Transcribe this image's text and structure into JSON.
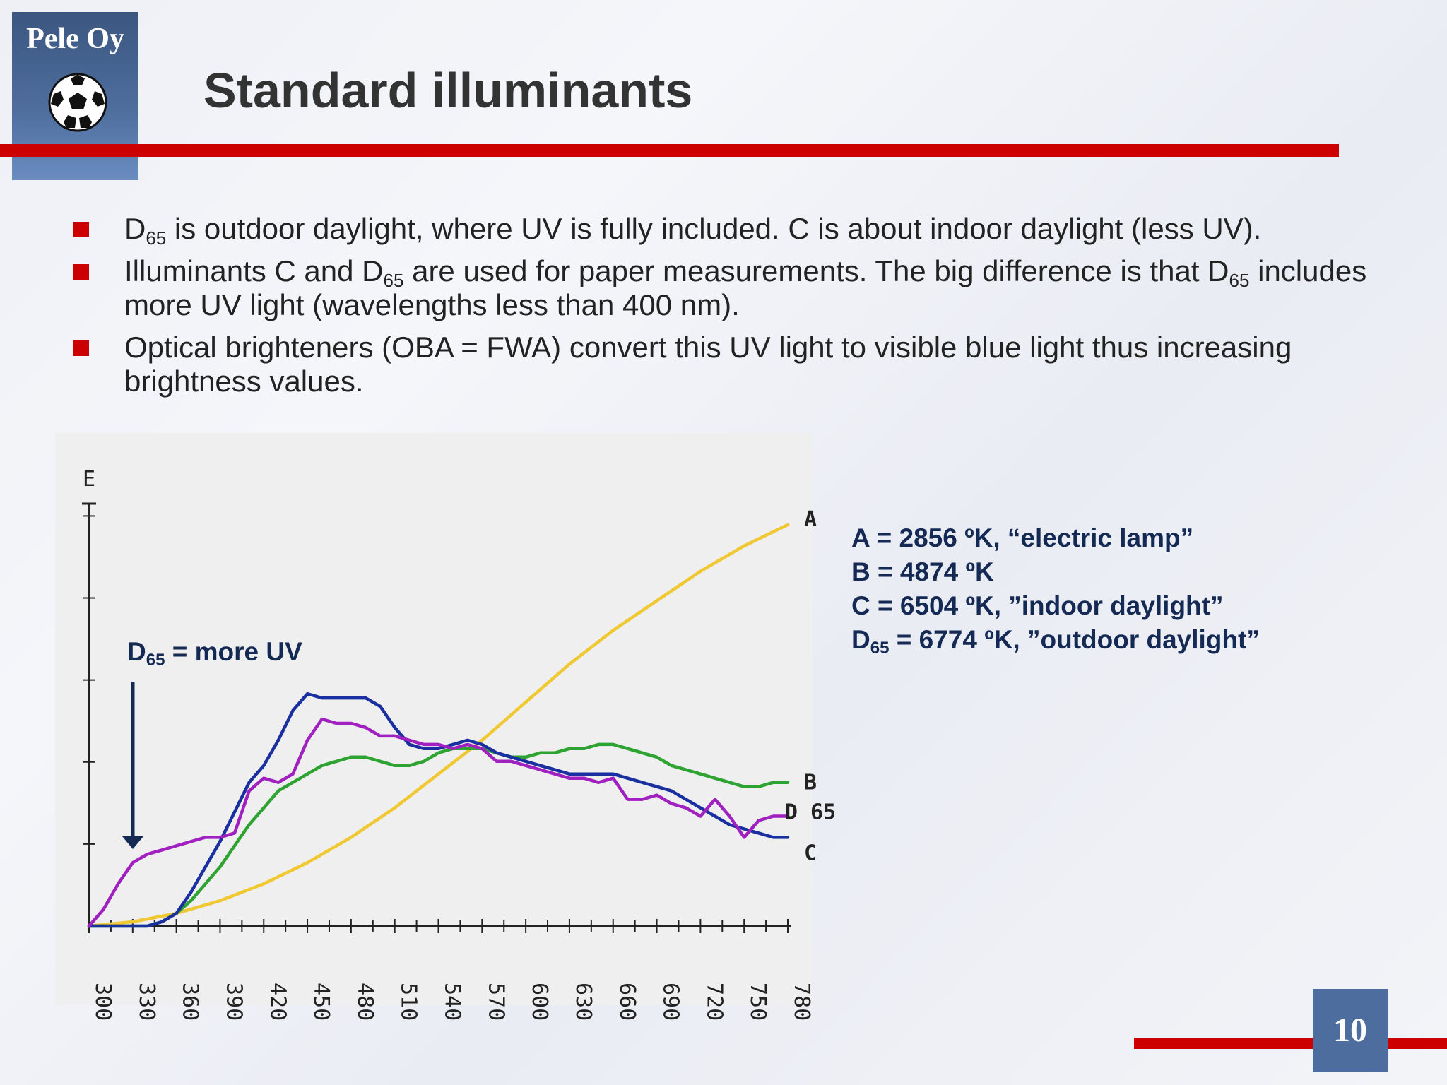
{
  "logo": {
    "text": "Pele Oy",
    "icon": "soccer-ball-icon"
  },
  "title": "Standard illuminants",
  "colors": {
    "accent_red": "#cc0000",
    "logo_blue": "#4f6f9f",
    "text_navy": "#142a55"
  },
  "bullets": [
    {
      "p1": "D",
      "sub1": "65",
      "p2": " is outdoor daylight, where UV is fully included. C is about indoor daylight (less UV)."
    },
    {
      "p1": "Illuminants C and D",
      "sub1": "65",
      "p2": " are used for paper measurements. The big difference is that D",
      "sub2": "65",
      "p3": " includes more UV light (wavelengths less than 400 nm)."
    },
    {
      "p1": "Optical brighteners (OBA = FWA) convert this UV light to visible blue light thus increasing brightness values."
    }
  ],
  "legend": [
    {
      "text": "A = 2856 ºK, “electric lamp”"
    },
    {
      "text": "B = 4874 ºK"
    },
    {
      "text": "C = 6504 ºK, ”indoor daylight”"
    },
    {
      "p1": "D",
      "sub": "65",
      "p2": " = 6774 ºK, ”outdoor daylight”"
    }
  ],
  "note": {
    "p1": "D",
    "sub": "65",
    "p2": " = more UV"
  },
  "page_number": "10",
  "chart_data": {
    "type": "line",
    "ylabel": "E",
    "xlabel": "",
    "x_ticks": [
      "300",
      "330",
      "360",
      "390",
      "420",
      "450",
      "480",
      "510",
      "540",
      "570",
      "600",
      "630",
      "660",
      "690",
      "720",
      "750",
      "780"
    ],
    "xlim": [
      300,
      780
    ],
    "ylim": [
      0,
      100
    ],
    "grid": false,
    "series": [
      {
        "name": "A",
        "color": "#f0c832",
        "label": "A",
        "x": [
          300,
          330,
          360,
          390,
          420,
          450,
          480,
          510,
          540,
          570,
          600,
          630,
          660,
          690,
          720,
          750,
          780
        ],
        "y": [
          0,
          1,
          3,
          6,
          10,
          15,
          21,
          28,
          36,
          44,
          53,
          62,
          70,
          77,
          84,
          90,
          95
        ]
      },
      {
        "name": "B",
        "color": "#2ea332",
        "label": "B",
        "x": [
          300,
          320,
          330,
          340,
          350,
          360,
          370,
          380,
          390,
          400,
          410,
          420,
          430,
          440,
          450,
          460,
          470,
          480,
          490,
          500,
          510,
          520,
          530,
          540,
          550,
          560,
          570,
          580,
          590,
          600,
          610,
          620,
          630,
          640,
          650,
          660,
          670,
          680,
          690,
          700,
          710,
          720,
          730,
          740,
          750,
          760,
          770,
          780
        ],
        "y": [
          0,
          0,
          0,
          0,
          1,
          3,
          6,
          10,
          14,
          19,
          24,
          28,
          32,
          34,
          36,
          38,
          39,
          40,
          40,
          39,
          38,
          38,
          39,
          41,
          42,
          42,
          42,
          41,
          40,
          40,
          41,
          41,
          42,
          42,
          43,
          43,
          42,
          41,
          40,
          38,
          37,
          36,
          35,
          34,
          33,
          33,
          34,
          34
        ]
      },
      {
        "name": "C",
        "color": "#1a2fa0",
        "label": "C",
        "x": [
          300,
          320,
          330,
          340,
          350,
          360,
          370,
          380,
          390,
          400,
          410,
          420,
          430,
          440,
          450,
          460,
          470,
          480,
          490,
          500,
          510,
          520,
          530,
          540,
          550,
          560,
          570,
          580,
          590,
          600,
          610,
          620,
          630,
          640,
          650,
          660,
          670,
          680,
          690,
          700,
          710,
          720,
          730,
          740,
          750,
          760,
          770,
          780
        ],
        "y": [
          0,
          0,
          0,
          0,
          1,
          3,
          8,
          14,
          20,
          27,
          34,
          38,
          44,
          51,
          55,
          54,
          54,
          54,
          54,
          52,
          47,
          43,
          42,
          42,
          43,
          44,
          43,
          41,
          40,
          39,
          38,
          37,
          36,
          36,
          36,
          36,
          35,
          34,
          33,
          32,
          30,
          28,
          26,
          24,
          23,
          22,
          21,
          21
        ]
      },
      {
        "name": "D65",
        "color": "#a020c0",
        "label": "D 65",
        "x": [
          300,
          310,
          320,
          330,
          340,
          350,
          360,
          370,
          380,
          390,
          400,
          410,
          420,
          430,
          440,
          450,
          460,
          470,
          480,
          490,
          500,
          510,
          520,
          530,
          540,
          550,
          560,
          570,
          580,
          590,
          600,
          610,
          620,
          630,
          640,
          650,
          660,
          670,
          680,
          690,
          700,
          710,
          720,
          730,
          740,
          750,
          760,
          770,
          780
        ],
        "y": [
          0,
          4,
          10,
          15,
          17,
          18,
          19,
          20,
          21,
          21,
          22,
          32,
          35,
          34,
          36,
          44,
          49,
          48,
          48,
          47,
          45,
          45,
          44,
          43,
          43,
          42,
          43,
          42,
          39,
          39,
          38,
          37,
          36,
          35,
          35,
          34,
          35,
          30,
          30,
          31,
          29,
          28,
          26,
          30,
          26,
          21,
          25,
          26,
          26
        ]
      }
    ]
  }
}
